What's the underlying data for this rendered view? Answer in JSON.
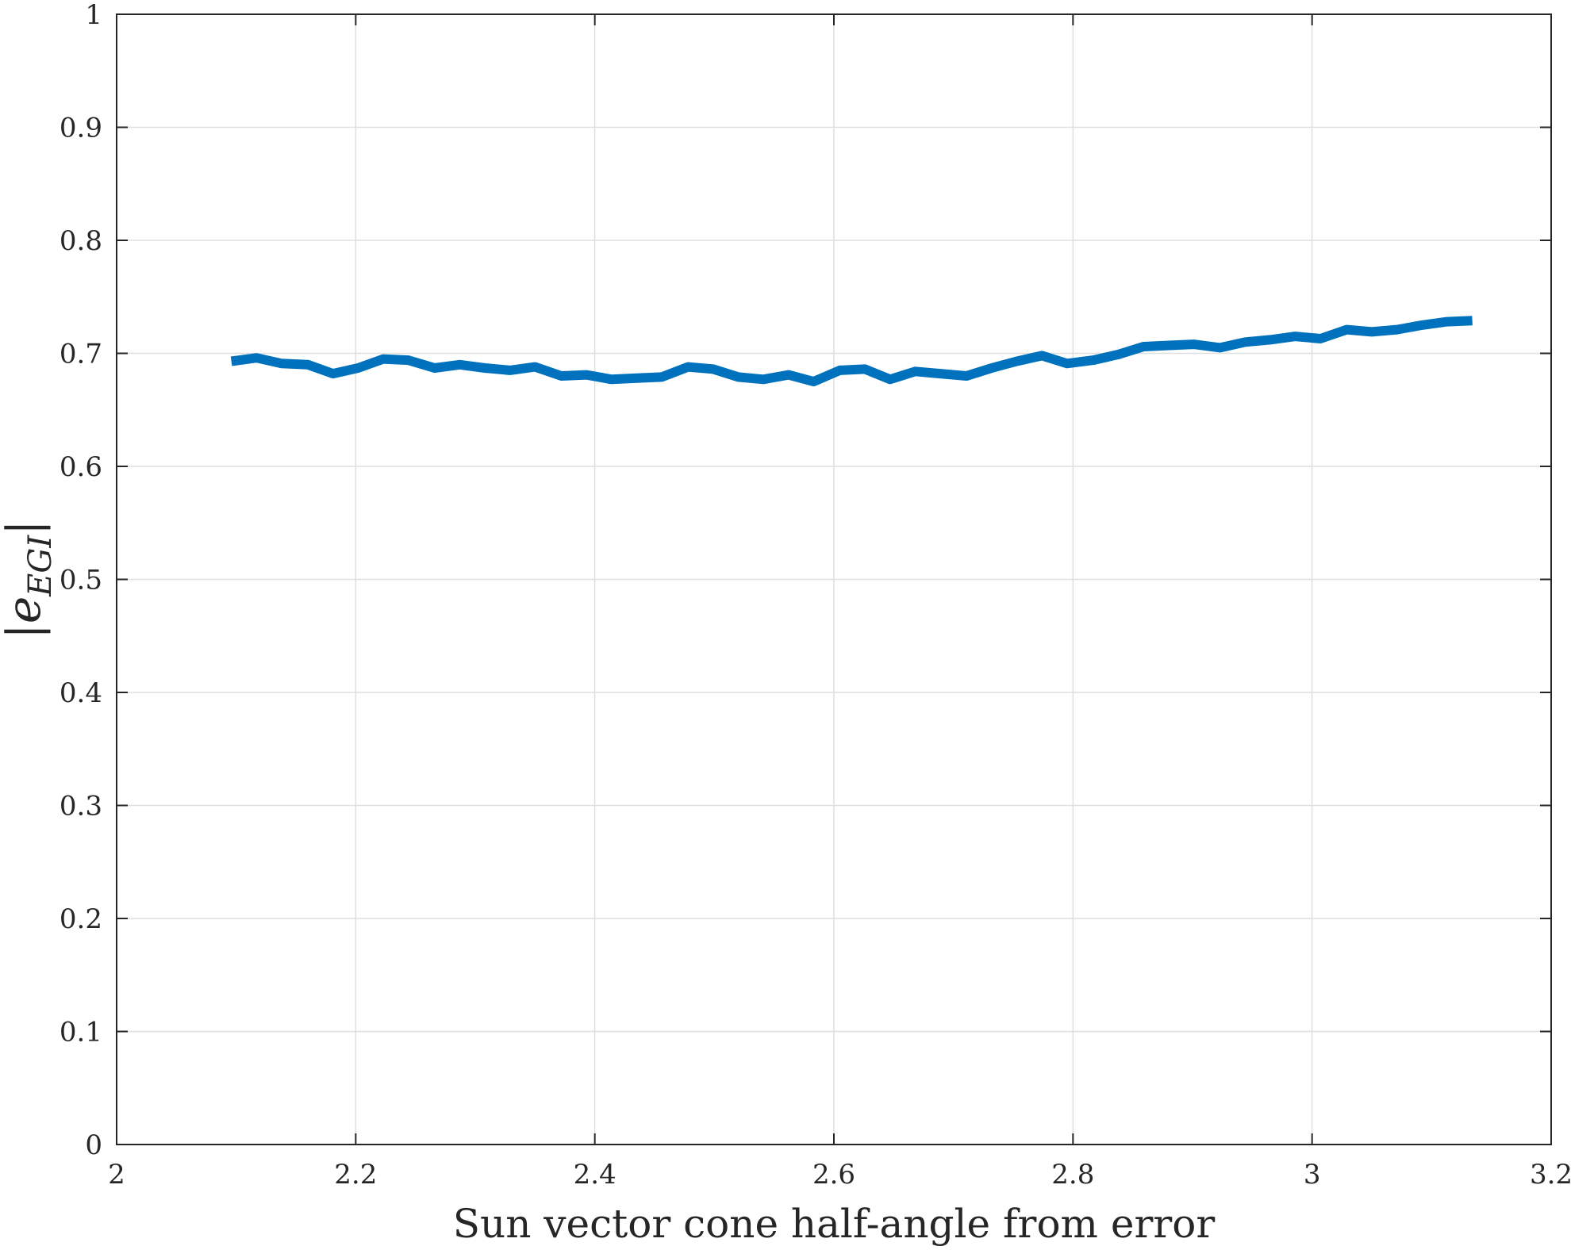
{
  "chart_data": {
    "type": "line",
    "xlabel": "Sun vector cone half-angle from error",
    "ylabel": "|e_EGI|",
    "ylabel_parts": {
      "open": "|",
      "main": "e",
      "sub": "EGI",
      "close": "|"
    },
    "xlim": [
      2,
      3.2
    ],
    "ylim": [
      0,
      1
    ],
    "xticks": [
      2,
      2.2,
      2.4,
      2.6,
      2.8,
      3,
      3.2
    ],
    "xtick_labels": [
      "2",
      "2.2",
      "2.4",
      "2.6",
      "2.8",
      "3",
      "3.2"
    ],
    "yticks": [
      0,
      0.1,
      0.2,
      0.3,
      0.4,
      0.5,
      0.6,
      0.7,
      0.8,
      0.9,
      1
    ],
    "ytick_labels": [
      "0",
      "0.1",
      "0.2",
      "0.3",
      "0.4",
      "0.5",
      "0.6",
      "0.7",
      "0.8",
      "0.9",
      "1"
    ],
    "grid": true,
    "line_color": "#0072BD",
    "series": [
      {
        "x": [
          2.096,
          2.117,
          2.138,
          2.16,
          2.181,
          2.202,
          2.223,
          2.244,
          2.266,
          2.287,
          2.308,
          2.329,
          2.35,
          2.372,
          2.393,
          2.414,
          2.435,
          2.456,
          2.478,
          2.499,
          2.52,
          2.541,
          2.562,
          2.583,
          2.605,
          2.626,
          2.647,
          2.668,
          2.689,
          2.711,
          2.732,
          2.753,
          2.774,
          2.795,
          2.817,
          2.838,
          2.859,
          2.88,
          2.901,
          2.923,
          2.944,
          2.965,
          2.986,
          3.007,
          3.029,
          3.05,
          3.071,
          3.092,
          3.113,
          3.134
        ],
        "values": [
          0.693,
          0.696,
          0.691,
          0.69,
          0.682,
          0.687,
          0.695,
          0.694,
          0.687,
          0.69,
          0.687,
          0.685,
          0.688,
          0.68,
          0.681,
          0.677,
          0.678,
          0.679,
          0.688,
          0.686,
          0.679,
          0.677,
          0.681,
          0.675,
          0.685,
          0.686,
          0.677,
          0.684,
          0.682,
          0.68,
          0.687,
          0.693,
          0.698,
          0.691,
          0.694,
          0.699,
          0.706,
          0.707,
          0.708,
          0.705,
          0.71,
          0.712,
          0.715,
          0.713,
          0.721,
          0.719,
          0.721,
          0.725,
          0.728,
          0.729
        ]
      }
    ]
  }
}
